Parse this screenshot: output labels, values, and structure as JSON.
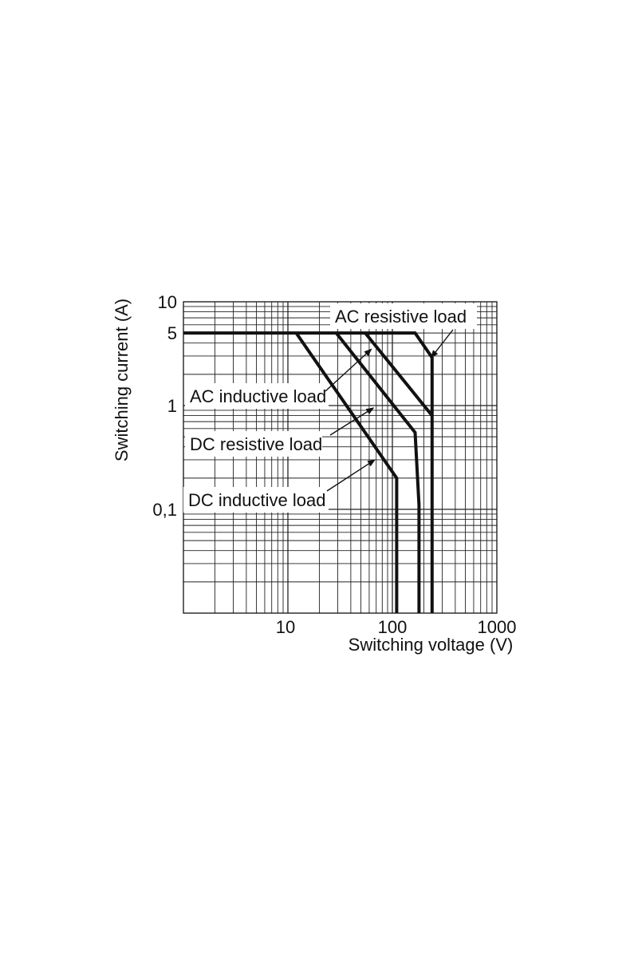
{
  "chart_data": {
    "type": "line",
    "title": "",
    "xlabel": "Switching voltage (V)",
    "ylabel": "Switching current (A)",
    "x_scale": "log",
    "y_scale": "log",
    "xlim": [
      1,
      1000
    ],
    "ylim": [
      0.01,
      10
    ],
    "grid": true,
    "x_ticks": [
      {
        "value": 10,
        "label": "10"
      },
      {
        "value": 100,
        "label": "100"
      },
      {
        "value": 1000,
        "label": "1000"
      }
    ],
    "y_ticks": [
      {
        "value": 10,
        "label": "10"
      },
      {
        "value": 5,
        "label": "5"
      },
      {
        "value": 1,
        "label": "1"
      },
      {
        "value": 0.1,
        "label": "0,1"
      }
    ],
    "series": [
      {
        "name": "AC resistive load",
        "x": [
          1,
          165,
          240,
          240
        ],
        "y": [
          5,
          5,
          2.9,
          0.01
        ]
      },
      {
        "name": "AC inductive load",
        "x": [
          55,
          240
        ],
        "y": [
          5,
          0.8
        ]
      },
      {
        "name": "DC resistive load",
        "x": [
          29,
          165,
          180,
          180
        ],
        "y": [
          5,
          0.55,
          0.11,
          0.01
        ]
      },
      {
        "name": "DC inductive load",
        "x": [
          12,
          110,
          110
        ],
        "y": [
          5,
          0.2,
          0.01
        ]
      }
    ],
    "annotations": [
      {
        "series": "AC resistive load",
        "text": "AC resistive load",
        "point": [
          235,
          2.9
        ]
      },
      {
        "series": "AC inductive load",
        "text": "AC inductive load",
        "point": [
          63,
          3.5
        ]
      },
      {
        "series": "DC resistive load",
        "text": "DC resistive load",
        "point": [
          66,
          0.95
        ]
      },
      {
        "series": "DC inductive load",
        "text": "DC inductive load",
        "point": [
          68,
          0.3
        ]
      }
    ]
  }
}
